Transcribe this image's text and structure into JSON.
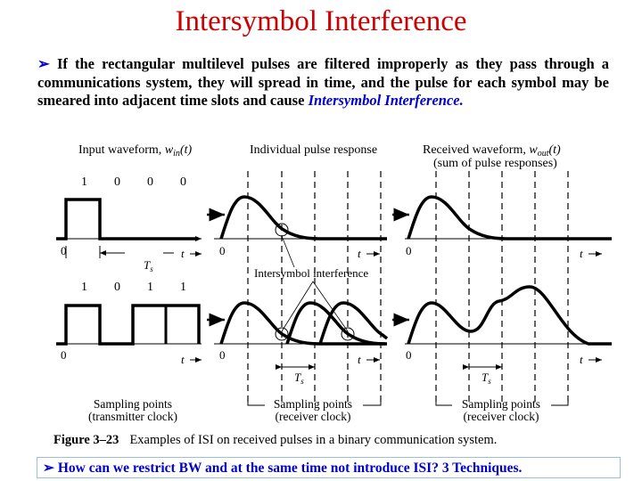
{
  "title": "Intersymbol Interference",
  "intro": {
    "bullet": "➢",
    "text": "If the rectangular multilevel pulses are filtered improperly as they pass through a communications system, they will spread in time, and the pulse for each symbol may be smeared into adjacent time slots and cause",
    "emphasis": "Intersymbol Interference."
  },
  "figure": {
    "col_titles": {
      "input": "Input waveform, ",
      "input_sym": "w",
      "input_sub": "in",
      "input_arg": "(t)",
      "pulse": "Individual pulse response",
      "received": "Received waveform, ",
      "received_sym": "w",
      "received_sub": "out",
      "received_arg": "(t)",
      "received_sub2": "(sum of pulse responses)"
    },
    "bits_top": [
      "1",
      "0",
      "0",
      "0"
    ],
    "bits_bottom": [
      "1",
      "0",
      "1",
      "1"
    ],
    "zero_label": "0",
    "t_label": "t",
    "ts_label": "T",
    "ts_sub": "s",
    "isi_label": "Intersymbol interference",
    "sampling": {
      "tx": [
        "Sampling points",
        "(transmitter clock)"
      ],
      "rx1": [
        "Sampling points",
        "(receiver clock)"
      ],
      "rx2": [
        "Sampling points",
        "(receiver clock)"
      ]
    },
    "caption_num": "Figure 3–23",
    "caption": "Examples of ISI on received pulses in a binary communication system."
  },
  "footer": {
    "bullet": "➢",
    "text": "How can we restrict BW and at the same time not introduce ISI?   3 Techniques."
  },
  "colors": {
    "title": "#cc0000",
    "accent": "#0000cc"
  }
}
